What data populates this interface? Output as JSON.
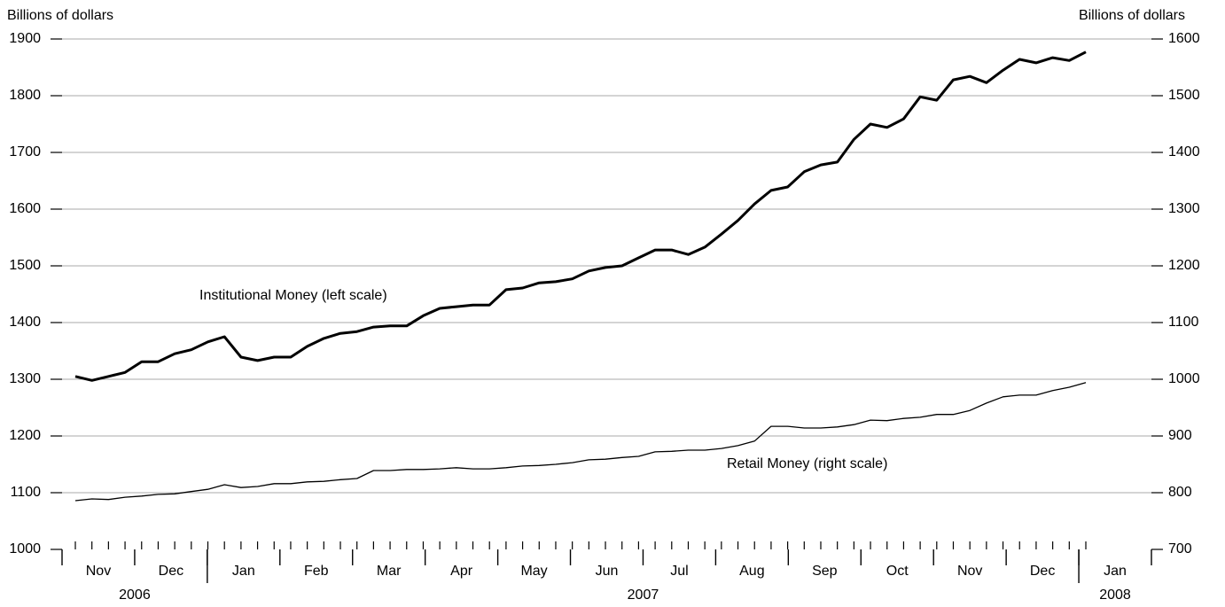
{
  "chart_data": {
    "type": "line",
    "y_label": "Billions of dollars",
    "y2_label": "Billions of dollars",
    "categories": [
      null,
      null,
      null,
      null,
      null,
      null,
      null,
      null,
      null,
      null,
      null,
      null,
      null,
      null,
      null,
      null,
      null,
      null,
      null,
      null,
      null,
      null,
      null,
      null,
      null,
      null,
      null,
      null,
      null,
      null,
      null,
      null,
      null,
      null,
      null,
      null,
      null,
      null,
      null,
      null,
      null,
      null,
      null,
      null,
      null,
      null,
      null,
      null,
      null,
      null,
      null,
      null,
      null,
      null,
      null,
      null,
      null,
      null,
      null,
      null,
      null,
      null
    ],
    "months": [
      "Nov",
      "Dec",
      "Jan",
      "Feb",
      "Mar",
      "Apr",
      "May",
      "Jun",
      "Jul",
      "Aug",
      "Sep",
      "Oct",
      "Nov",
      "Dec",
      "Jan"
    ],
    "years": [
      "2006",
      "2007",
      "2008"
    ],
    "ylim": [
      1000,
      1900
    ],
    "yticks": [
      1000,
      1100,
      1200,
      1300,
      1400,
      1500,
      1600,
      1700,
      1800,
      1900
    ],
    "y2lim": [
      700,
      1600
    ],
    "y2ticks": [
      700,
      800,
      900,
      1000,
      1100,
      1200,
      1300,
      1400,
      1500,
      1600
    ],
    "grid": true,
    "series": [
      {
        "name": "Institutional Money (left scale)",
        "color": "#000000",
        "line_width": 3,
        "values": [
          1305,
          1298,
          1305,
          1312,
          1331,
          1331,
          1345,
          1352,
          1366,
          1375,
          1339,
          1333,
          1339,
          1339,
          1358,
          1372,
          1381,
          1384,
          1392,
          1394,
          1394,
          1412,
          1425,
          1428,
          1431,
          1431,
          1458,
          1461,
          1470,
          1472,
          1477,
          1491,
          1497,
          1500,
          1514,
          1528,
          1528,
          1520,
          1533,
          1556,
          1580,
          1609,
          1633,
          1639,
          1666,
          1678,
          1683,
          1723,
          1750,
          1744,
          1759,
          1798,
          1792,
          1828,
          1834,
          1823,
          1845,
          1864,
          1858,
          1867,
          1862,
          1877
        ]
      },
      {
        "name": "Retail Money (right scale)",
        "color": "#000000",
        "line_width": 1.3,
        "axis": "y2",
        "values": [
          786,
          789,
          788,
          792,
          794,
          797,
          798,
          802,
          806,
          814,
          809,
          811,
          816,
          816,
          819,
          820,
          823,
          825,
          839,
          839,
          841,
          841,
          842,
          844,
          842,
          842,
          844,
          847,
          848,
          850,
          853,
          858,
          859,
          862,
          864,
          872,
          873,
          875,
          875,
          878,
          883,
          891,
          917,
          917,
          914,
          914,
          916,
          920,
          928,
          927,
          931,
          933,
          938,
          938,
          945,
          958,
          969,
          972,
          972,
          980,
          986,
          994
        ]
      }
    ]
  }
}
